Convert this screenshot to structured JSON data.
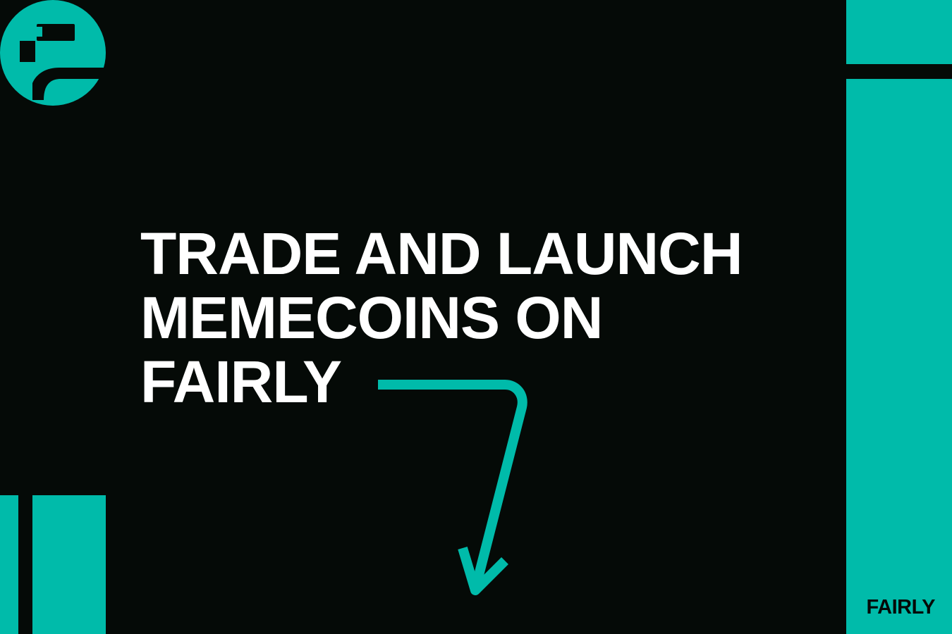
{
  "headline": {
    "line1": "TRADE AND LAUNCH",
    "line2": "MEMECOINS ON",
    "line3": "FAIRLY"
  },
  "brand": {
    "label": "FAIRLY",
    "logo_icon": "fairly-logo-icon"
  },
  "decor": {
    "arrow_icon": "arrow-down-icon"
  },
  "colors": {
    "background": "#050a07",
    "accent": "#00bbaa",
    "text": "#ffffff"
  }
}
